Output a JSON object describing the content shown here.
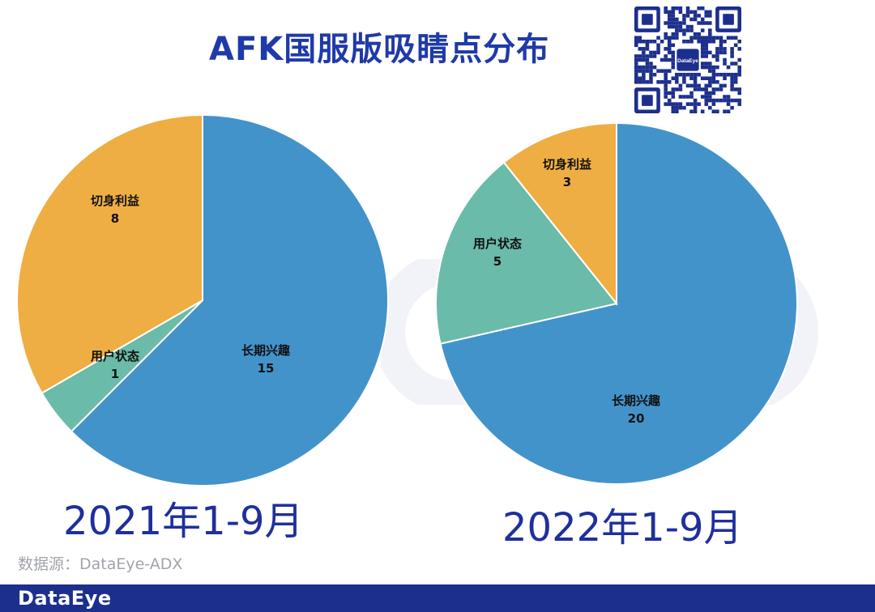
{
  "title": "AFK国服版吸睛点分布",
  "source": "数据源：DataEye-ADX",
  "footer_logo": "DataEye",
  "qr_logo_text": "DataEye",
  "colors": {
    "长期兴趣": "#4393cb",
    "切身利益": "#eeae43",
    "用户状态": "#6abba9",
    "title": "#1f3aa8",
    "footer": "#1d2f8c"
  },
  "chart_data": [
    {
      "type": "pie",
      "title": "2021年1-9月",
      "labels": [
        "长期兴趣",
        "用户状态",
        "切身利益"
      ],
      "values": [
        15,
        1,
        8
      ]
    },
    {
      "type": "pie",
      "title": "2022年1-9月",
      "labels": [
        "长期兴趣",
        "用户状态",
        "切身利益"
      ],
      "values": [
        20,
        5,
        3
      ]
    }
  ]
}
